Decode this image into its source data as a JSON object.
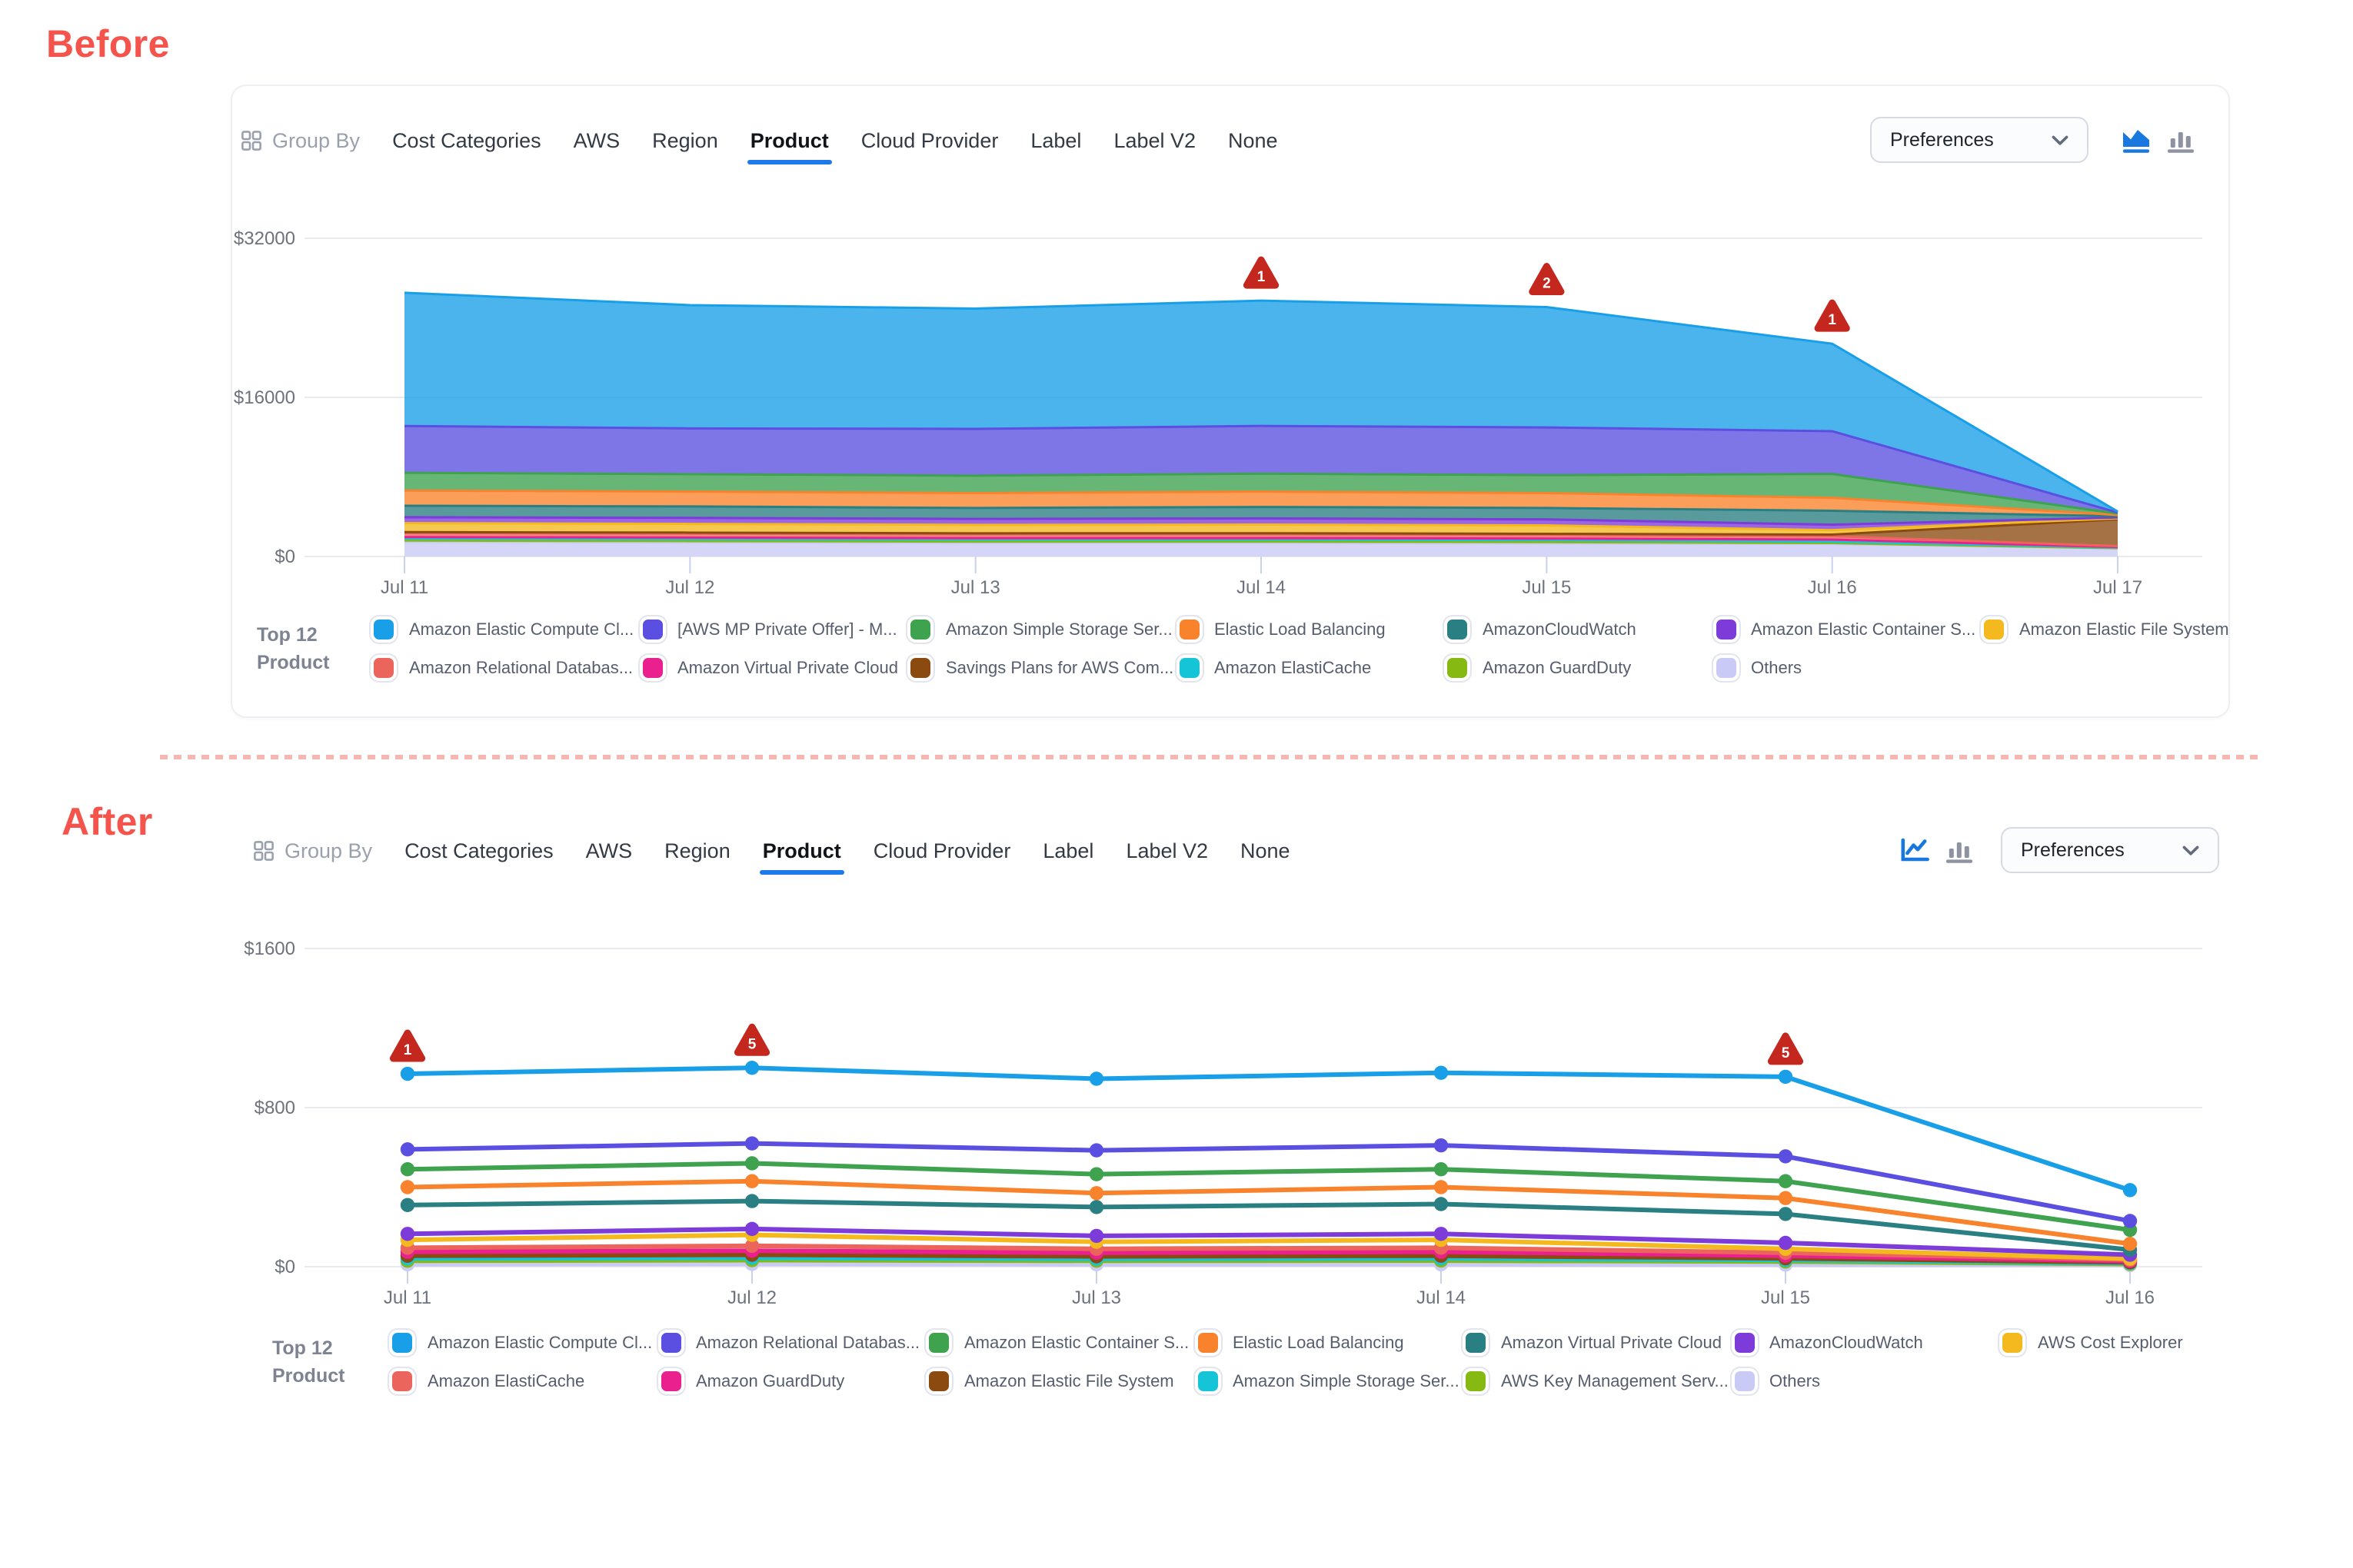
{
  "labels": {
    "before": "Before",
    "after": "After"
  },
  "toolbar": {
    "group_by_label": "Group By",
    "tabs": [
      "Cost Categories",
      "AWS",
      "Region",
      "Product",
      "Cloud Provider",
      "Label",
      "Label V2",
      "None"
    ],
    "selected_tab": "Product",
    "preferences_label": "Preferences"
  },
  "legend_title": {
    "line1": "Top 12",
    "line2": "Product"
  },
  "colors": {
    "accent": "#1f7ae9",
    "badge": "#c3271e",
    "blue": "#189fe8",
    "indigo": "#5a4fe0",
    "green": "#3ea24f",
    "orange": "#f8832c",
    "teal": "#2a7f82",
    "purple": "#7d3bd9",
    "yellow": "#f4b91e",
    "salmon": "#ec655c",
    "magenta": "#e9208e",
    "brown": "#8a4a10",
    "cyan": "#16c4d8",
    "lime": "#86ba12",
    "lavender": "#c9caf5"
  },
  "chart_data": [
    {
      "id": "before",
      "type": "area",
      "stacked": true,
      "title": "Before - Top 12 Product daily cost, stacked area",
      "x": [
        "Jul 11",
        "Jul 12",
        "Jul 13",
        "Jul 14",
        "Jul 15",
        "Jul 16",
        "Jul 17"
      ],
      "yticks": [
        0,
        16000,
        32000
      ],
      "ytick_labels": [
        "$0",
        "$16000",
        "$32000"
      ],
      "ylim": [
        0,
        32000
      ],
      "grid": "horizontal",
      "legend_position": "bottom",
      "series_bottom_to_top": [
        {
          "name": "Others",
          "color": "lavender",
          "values": [
            1450,
            1400,
            1350,
            1350,
            1300,
            1250,
            800
          ]
        },
        {
          "name": "Amazon GuardDuty",
          "color": "lime",
          "values": [
            150,
            150,
            150,
            150,
            150,
            100,
            40
          ]
        },
        {
          "name": "Amazon ElastiCache",
          "color": "cyan",
          "values": [
            200,
            200,
            200,
            200,
            200,
            150,
            60
          ]
        },
        {
          "name": "Amazon Virtual Private Cloud",
          "color": "magenta",
          "values": [
            150,
            150,
            150,
            150,
            150,
            200,
            60
          ]
        },
        {
          "name": "Amazon Relational Databas...",
          "color": "salmon",
          "values": [
            400,
            400,
            380,
            390,
            380,
            350,
            80
          ]
        },
        {
          "name": "Savings Plans for AWS Com...",
          "color": "brown",
          "values": [
            100,
            100,
            100,
            100,
            100,
            150,
            2700
          ]
        },
        {
          "name": "Amazon Elastic File System",
          "color": "yellow",
          "values": [
            900,
            880,
            850,
            870,
            850,
            450,
            100
          ]
        },
        {
          "name": "Amazon Elastic Container S...",
          "color": "purple",
          "values": [
            600,
            600,
            600,
            620,
            600,
            550,
            80
          ]
        },
        {
          "name": "AmazonCloudWatch",
          "color": "teal",
          "values": [
            1150,
            1150,
            1100,
            1150,
            1150,
            1400,
            130
          ]
        },
        {
          "name": "Elastic Load Balancing",
          "color": "orange",
          "values": [
            1530,
            1500,
            1500,
            1550,
            1500,
            1300,
            120
          ]
        },
        {
          "name": "Amazon Simple Storage Ser...",
          "color": "green",
          "values": [
            1790,
            1750,
            1750,
            1800,
            1800,
            2400,
            150
          ]
        },
        {
          "name": "[AWS MP Private Offer] - M...",
          "color": "indigo",
          "values": [
            4700,
            4600,
            4700,
            4800,
            4800,
            4300,
            100
          ]
        },
        {
          "name": "Amazon Elastic Compute Cl...",
          "color": "blue",
          "values": [
            13400,
            12400,
            12100,
            12600,
            12100,
            8800,
            100
          ]
        }
      ],
      "annotations": [
        {
          "x_index": 3,
          "x": "Jul 14",
          "label": "1"
        },
        {
          "x_index": 4,
          "x": "Jul 15",
          "label": "2"
        },
        {
          "x_index": 5,
          "x": "Jul 16",
          "label": "1"
        }
      ],
      "legend_rows": [
        [
          {
            "label": "Amazon Elastic Compute Cl...",
            "color": "blue"
          },
          {
            "label": "[AWS MP Private Offer] - M...",
            "color": "indigo"
          },
          {
            "label": "Amazon Simple Storage Ser...",
            "color": "green"
          },
          {
            "label": "Elastic Load Balancing",
            "color": "orange"
          },
          {
            "label": "AmazonCloudWatch",
            "color": "teal"
          },
          {
            "label": "Amazon Elastic Container S...",
            "color": "purple"
          },
          {
            "label": "Amazon Elastic File System",
            "color": "yellow"
          }
        ],
        [
          {
            "label": "Amazon Relational Databas...",
            "color": "salmon"
          },
          {
            "label": "Amazon Virtual Private Cloud",
            "color": "magenta"
          },
          {
            "label": "Savings Plans for AWS Com...",
            "color": "brown"
          },
          {
            "label": "Amazon ElastiCache",
            "color": "cyan"
          },
          {
            "label": "Amazon GuardDuty",
            "color": "lime"
          },
          {
            "label": "Others",
            "color": "lavender"
          }
        ]
      ]
    },
    {
      "id": "after",
      "type": "line",
      "stacked": false,
      "title": "After - Top 12 Product daily cost, line chart",
      "x": [
        "Jul 11",
        "Jul 12",
        "Jul 13",
        "Jul 14",
        "Jul 15",
        "Jul 16"
      ],
      "yticks": [
        0,
        800,
        1600
      ],
      "ytick_labels": [
        "$0",
        "$800",
        "$1600"
      ],
      "ylim": [
        0,
        1600
      ],
      "grid": "horizontal",
      "legend_position": "bottom",
      "series": [
        {
          "name": "Amazon Elastic Compute Cl...",
          "color": "blue",
          "values": [
            970,
            1000,
            945,
            975,
            955,
            385
          ]
        },
        {
          "name": "Amazon Relational Databas...",
          "color": "indigo",
          "values": [
            590,
            620,
            585,
            610,
            555,
            230
          ]
        },
        {
          "name": "Amazon Elastic Container S...",
          "color": "green",
          "values": [
            490,
            520,
            465,
            490,
            430,
            185
          ]
        },
        {
          "name": "Elastic Load Balancing",
          "color": "orange",
          "values": [
            400,
            430,
            370,
            400,
            345,
            115
          ]
        },
        {
          "name": "Amazon Virtual Private Cloud",
          "color": "teal",
          "values": [
            310,
            330,
            300,
            315,
            265,
            85
          ]
        },
        {
          "name": "AmazonCloudWatch",
          "color": "purple",
          "values": [
            165,
            190,
            155,
            165,
            120,
            60
          ]
        },
        {
          "name": "AWS Cost Explorer",
          "color": "yellow",
          "values": [
            135,
            160,
            125,
            135,
            90,
            40
          ]
        },
        {
          "name": "Amazon ElastiCache",
          "color": "salmon",
          "values": [
            95,
            105,
            90,
            95,
            70,
            35
          ]
        },
        {
          "name": "Amazon GuardDuty",
          "color": "magenta",
          "values": [
            75,
            80,
            70,
            75,
            55,
            28
          ]
        },
        {
          "name": "Amazon Elastic File System",
          "color": "brown",
          "values": [
            55,
            60,
            52,
            55,
            42,
            22
          ]
        },
        {
          "name": "Amazon Simple Storage Ser...",
          "color": "cyan",
          "values": [
            42,
            45,
            40,
            42,
            34,
            18
          ]
        },
        {
          "name": "AWS Key Management Serv...",
          "color": "lime",
          "values": [
            30,
            33,
            30,
            31,
            26,
            14
          ]
        },
        {
          "name": "Others",
          "color": "lavender",
          "values": [
            12,
            14,
            12,
            12,
            10,
            8
          ]
        }
      ],
      "annotations": [
        {
          "x_index": 0,
          "x": "Jul 11",
          "label": "1",
          "series": "Amazon Elastic Compute Cl..."
        },
        {
          "x_index": 1,
          "x": "Jul 12",
          "label": "5",
          "series": "Amazon Elastic Compute Cl..."
        },
        {
          "x_index": 4,
          "x": "Jul 15",
          "label": "5",
          "series": "Amazon Elastic Compute Cl..."
        }
      ],
      "legend_rows": [
        [
          {
            "label": "Amazon Elastic Compute Cl...",
            "color": "blue"
          },
          {
            "label": "Amazon Relational Databas...",
            "color": "indigo"
          },
          {
            "label": "Amazon Elastic Container S...",
            "color": "green"
          },
          {
            "label": "Elastic Load Balancing",
            "color": "orange"
          },
          {
            "label": "Amazon Virtual Private Cloud",
            "color": "teal"
          },
          {
            "label": "AmazonCloudWatch",
            "color": "purple"
          },
          {
            "label": "AWS Cost Explorer",
            "color": "yellow"
          }
        ],
        [
          {
            "label": "Amazon ElastiCache",
            "color": "salmon"
          },
          {
            "label": "Amazon GuardDuty",
            "color": "magenta"
          },
          {
            "label": "Amazon Elastic File System",
            "color": "brown"
          },
          {
            "label": "Amazon Simple Storage Ser...",
            "color": "cyan"
          },
          {
            "label": "AWS Key Management Serv...",
            "color": "lime"
          },
          {
            "label": "Others",
            "color": "lavender"
          }
        ]
      ]
    }
  ]
}
